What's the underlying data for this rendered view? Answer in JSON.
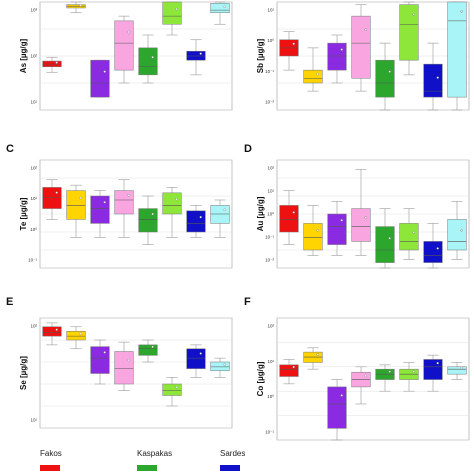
{
  "chart_data": [
    {
      "type": "boxplot",
      "panel": "",
      "ylabel": "As [µg/g]",
      "scale": "log",
      "ylim": [
        0.1,
        1000
      ],
      "ticks": [
        "10¹",
        "10²",
        "10³"
      ],
      "boxes": [
        {
          "series": "Fakos",
          "color": "#ee1111",
          "q1": 4,
          "median": 5,
          "q3": 6.5,
          "wlo": 2.5,
          "whi": 9
        },
        {
          "series": "",
          "color": "#ffd400",
          "q1": 600,
          "median": 700,
          "q3": 800,
          "wlo": 400,
          "whi": 1000
        },
        {
          "series": "",
          "color": "#8a2be2",
          "q1": 0.3,
          "median": 1,
          "q3": 7,
          "wlo": 0.3,
          "whi": 7
        },
        {
          "series": "",
          "color": "#f9a6e0",
          "q1": 3,
          "median": 30,
          "q3": 200,
          "wlo": 1,
          "whi": 300
        },
        {
          "series": "Kaspakas",
          "color": "#2da62d",
          "q1": 2,
          "median": 4,
          "q3": 20,
          "wlo": 1,
          "whi": 60
        },
        {
          "series": "",
          "color": "#8ee63a",
          "q1": 150,
          "median": 300,
          "q3": 1000,
          "wlo": 60,
          "whi": 1000
        },
        {
          "series": "Sardes",
          "color": "#1010c8",
          "q1": 7,
          "median": 10,
          "q3": 15,
          "wlo": 2,
          "whi": 40
        },
        {
          "series": "",
          "color": "#a8f4f6",
          "q1": 400,
          "median": 500,
          "q3": 900,
          "wlo": 150,
          "whi": 1000
        }
      ]
    },
    {
      "type": "boxplot",
      "panel": "",
      "ylabel": "Sb [µg/g]",
      "scale": "log",
      "ylim": [
        0.01,
        100
      ],
      "ticks": [
        "10⁻²",
        "10⁻¹",
        "10⁰",
        "10¹"
      ],
      "boxes": [
        {
          "series": "Fakos",
          "color": "#ee1111",
          "q1": 1,
          "median": 2,
          "q3": 4,
          "wlo": 0.3,
          "whi": 8
        },
        {
          "series": "",
          "color": "#ffd400",
          "q1": 0.1,
          "median": 0.15,
          "q3": 0.3,
          "wlo": 0.05,
          "whi": 2
        },
        {
          "series": "",
          "color": "#8a2be2",
          "q1": 0.3,
          "median": 1,
          "q3": 3,
          "wlo": 0.1,
          "whi": 6
        },
        {
          "series": "",
          "color": "#f9a6e0",
          "q1": 0.15,
          "median": 3,
          "q3": 30,
          "wlo": 0.05,
          "whi": 80
        },
        {
          "series": "Kaspakas",
          "color": "#2da62d",
          "q1": 0.03,
          "median": 0.1,
          "q3": 0.7,
          "wlo": 0.01,
          "whi": 3
        },
        {
          "series": "",
          "color": "#8ee63a",
          "q1": 0.7,
          "median": 15,
          "q3": 80,
          "wlo": 0.2,
          "whi": 100
        },
        {
          "series": "Sardes",
          "color": "#1010c8",
          "q1": 0.03,
          "median": 0.05,
          "q3": 0.5,
          "wlo": 0.01,
          "whi": 3
        },
        {
          "series": "",
          "color": "#a8f4f6",
          "q1": 0.03,
          "median": 20,
          "q3": 100,
          "wlo": 0.01,
          "whi": 100
        }
      ]
    },
    {
      "type": "boxplot",
      "panel": "C",
      "ylabel": "Te [µg/g]",
      "scale": "log",
      "ylim": [
        0.001,
        1000
      ],
      "ticks": [
        "10⁻¹",
        "10⁰",
        "10¹",
        "10²"
      ],
      "boxes": [
        {
          "series": "Fakos",
          "color": "#ee1111",
          "q1": 2,
          "median": 8,
          "q3": 30,
          "wlo": 0.5,
          "whi": 80
        },
        {
          "series": "",
          "color": "#ffd400",
          "q1": 0.5,
          "median": 3,
          "q3": 20,
          "wlo": 0.05,
          "whi": 40
        },
        {
          "series": "",
          "color": "#8a2be2",
          "q1": 0.3,
          "median": 2,
          "q3": 10,
          "wlo": 0.05,
          "whi": 20
        },
        {
          "series": "",
          "color": "#f9a6e0",
          "q1": 1,
          "median": 6,
          "q3": 20,
          "wlo": 0.05,
          "whi": 80
        },
        {
          "series": "Kaspakas",
          "color": "#2da62d",
          "q1": 0.1,
          "median": 0.5,
          "q3": 2,
          "wlo": 0.02,
          "whi": 10
        },
        {
          "series": "",
          "color": "#8ee63a",
          "q1": 1,
          "median": 3,
          "q3": 15,
          "wlo": 0.05,
          "whi": 30
        },
        {
          "series": "Sardes",
          "color": "#1010c8",
          "q1": 0.1,
          "median": 0.3,
          "q3": 1.5,
          "wlo": 0.05,
          "whi": 3
        },
        {
          "series": "",
          "color": "#a8f4f6",
          "q1": 0.3,
          "median": 1,
          "q3": 3,
          "wlo": 0.05,
          "whi": 6
        }
      ]
    },
    {
      "type": "boxplot",
      "panel": "D",
      "ylabel": "Au [µg/g]",
      "scale": "log",
      "ylim": [
        0.001,
        1000
      ],
      "ticks": [
        "10⁻²",
        "10⁻¹",
        "10⁰",
        "10¹",
        "10²"
      ],
      "boxes": [
        {
          "series": "Fakos",
          "color": "#ee1111",
          "q1": 0.1,
          "median": 0.5,
          "q3": 3,
          "wlo": 0.02,
          "whi": 20
        },
        {
          "series": "",
          "color": "#ffd400",
          "q1": 0.01,
          "median": 0.05,
          "q3": 0.3,
          "wlo": 0.005,
          "whi": 3
        },
        {
          "series": "",
          "color": "#8a2be2",
          "q1": 0.02,
          "median": 0.2,
          "q3": 1,
          "wlo": 0.005,
          "whi": 5
        },
        {
          "series": "",
          "color": "#f9a6e0",
          "q1": 0.03,
          "median": 0.2,
          "q3": 2,
          "wlo": 0.005,
          "whi": 300
        },
        {
          "series": "Kaspakas",
          "color": "#2da62d",
          "q1": 0.002,
          "median": 0.01,
          "q3": 0.2,
          "wlo": 0.001,
          "whi": 2
        },
        {
          "series": "",
          "color": "#8ee63a",
          "q1": 0.01,
          "median": 0.03,
          "q3": 0.3,
          "wlo": 0.003,
          "whi": 2
        },
        {
          "series": "Sardes",
          "color": "#1010c8",
          "q1": 0.002,
          "median": 0.005,
          "q3": 0.03,
          "wlo": 0.001,
          "whi": 0.3
        },
        {
          "series": "",
          "color": "#a8f4f6",
          "q1": 0.01,
          "median": 0.03,
          "q3": 0.5,
          "wlo": 0.003,
          "whi": 5
        }
      ]
    },
    {
      "type": "boxplot",
      "panel": "E",
      "ylabel": "Se [µg/g]",
      "scale": "log",
      "ylim": [
        0.01,
        1000
      ],
      "ticks": [
        "10¹",
        "10²"
      ],
      "boxes": [
        {
          "series": "Fakos",
          "color": "#ee1111",
          "q1": 150,
          "median": 220,
          "q3": 400,
          "wlo": 60,
          "whi": 600
        },
        {
          "series": "",
          "color": "#ffd400",
          "q1": 100,
          "median": 150,
          "q3": 250,
          "wlo": 40,
          "whi": 400
        },
        {
          "series": "",
          "color": "#8a2be2",
          "q1": 3,
          "median": 15,
          "q3": 50,
          "wlo": 1,
          "whi": 100
        },
        {
          "series": "",
          "color": "#f9a6e0",
          "q1": 1,
          "median": 5,
          "q3": 30,
          "wlo": 0.5,
          "whi": 80
        },
        {
          "series": "Kaspakas",
          "color": "#2da62d",
          "q1": 20,
          "median": 40,
          "q3": 60,
          "wlo": 10,
          "whi": 100
        },
        {
          "series": "",
          "color": "#8ee63a",
          "q1": 0.3,
          "median": 0.5,
          "q3": 1,
          "wlo": 0.1,
          "whi": 2
        },
        {
          "series": "Sardes",
          "color": "#1010c8",
          "q1": 5,
          "median": 15,
          "q3": 40,
          "wlo": 2,
          "whi": 60
        },
        {
          "series": "",
          "color": "#a8f4f6",
          "q1": 4,
          "median": 6,
          "q3": 10,
          "wlo": 2,
          "whi": 15
        }
      ]
    },
    {
      "type": "boxplot",
      "panel": "F",
      "ylabel": "Co [µg/g]",
      "scale": "log",
      "ylim": [
        0.01,
        1000
      ],
      "ticks": [
        "10⁻¹",
        "10⁰",
        "10¹",
        "10²"
      ],
      "boxes": [
        {
          "series": "Fakos",
          "color": "#ee1111",
          "q1": 4,
          "median": 8,
          "q3": 12,
          "wlo": 2,
          "whi": 20
        },
        {
          "series": "",
          "color": "#ffd400",
          "q1": 15,
          "median": 25,
          "q3": 40,
          "wlo": 8,
          "whi": 60
        },
        {
          "series": "",
          "color": "#8a2be2",
          "q1": 0.03,
          "median": 0.3,
          "q3": 1.5,
          "wlo": 0.01,
          "whi": 3
        },
        {
          "series": "",
          "color": "#f9a6e0",
          "q1": 1.5,
          "median": 3,
          "q3": 6,
          "wlo": 0.3,
          "whi": 10
        },
        {
          "series": "Kaspakas",
          "color": "#2da62d",
          "q1": 3,
          "median": 5,
          "q3": 8,
          "wlo": 1,
          "whi": 12
        },
        {
          "series": "",
          "color": "#8ee63a",
          "q1": 3,
          "median": 5,
          "q3": 8,
          "wlo": 1,
          "whi": 15
        },
        {
          "series": "Sardes",
          "color": "#1010c8",
          "q1": 3,
          "median": 10,
          "q3": 20,
          "wlo": 1,
          "whi": 30
        },
        {
          "series": "",
          "color": "#a8f4f6",
          "q1": 5,
          "median": 8,
          "q3": 10,
          "wlo": 3,
          "whi": 15
        }
      ]
    }
  ],
  "legend": {
    "items": [
      {
        "label": "Fakos",
        "color": "#ee1111"
      },
      {
        "label": "Kaspakas",
        "color": "#2da62d"
      },
      {
        "label": "Sardes",
        "color": "#1010c8"
      }
    ]
  }
}
